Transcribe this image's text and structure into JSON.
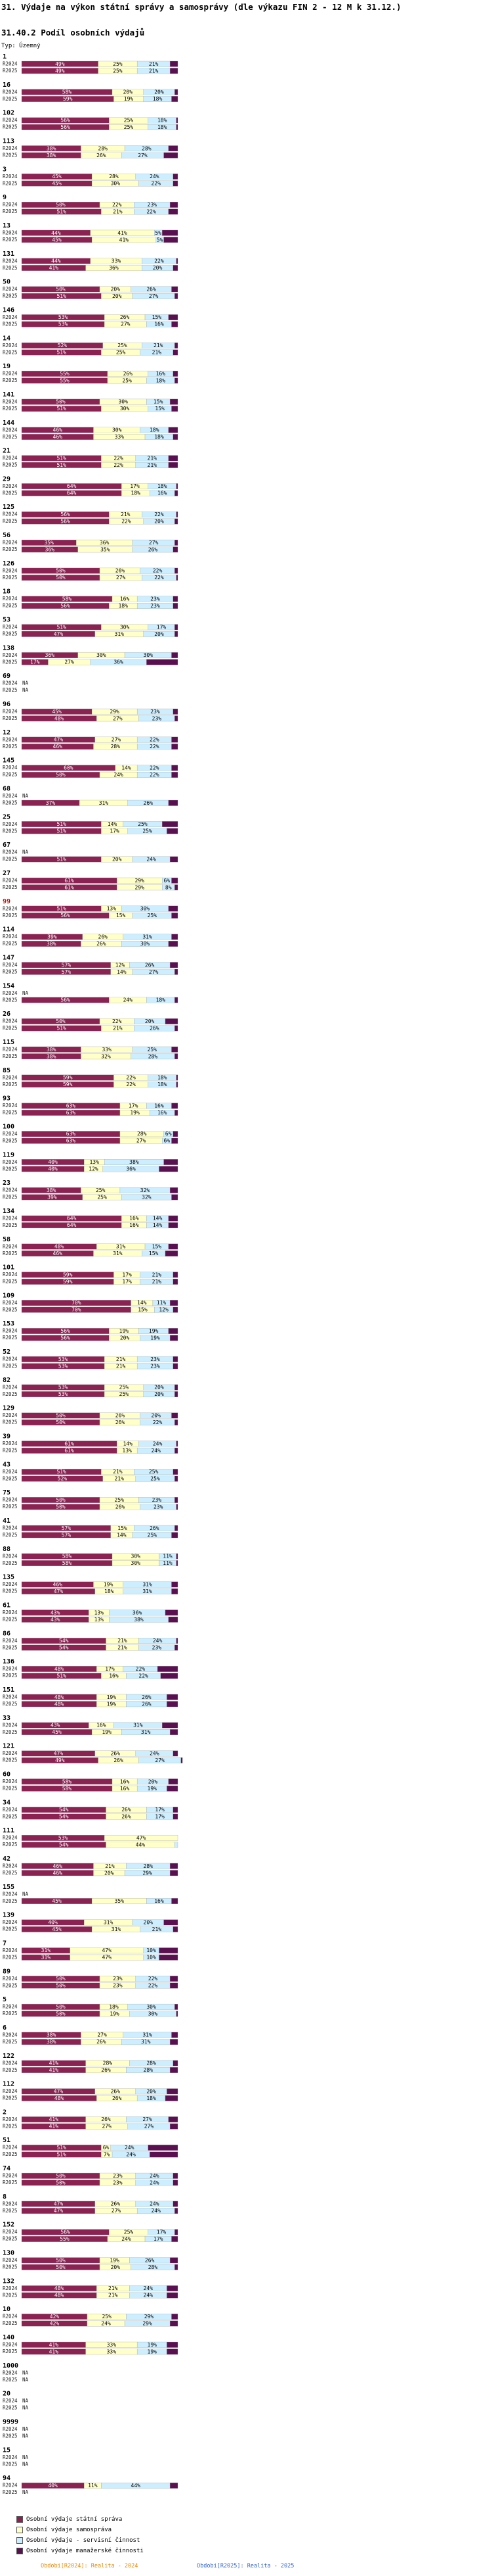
{
  "page": {
    "title": "31. Výdaje na výkon státní správy a samosprávy (dle výkazu FIN 2 - 12 M k 31.12.)",
    "subtitle": "31.40.2 Podíl osobních výdajů",
    "typ": "Typ: Územný",
    "row_labels": [
      "R2024",
      "R2025"
    ],
    "na_label": "NA",
    "highlight_group": "99"
  },
  "colors": {
    "statni_sprava": "#8b2252",
    "samosprava": "#ffffc8",
    "servisni": "#cceeff",
    "manazerske": "#5a1050"
  },
  "legend": [
    {
      "name": "Osobní výdaje státní správa",
      "color": "#8b2252"
    },
    {
      "name": "Osobní výdaje samospráva",
      "color": "#ffffc8"
    },
    {
      "name": "Osobní výdaje - servisní činnost",
      "color": "#cceeff"
    },
    {
      "name": "Osobní výdaje manažerské činnosti",
      "color": "#5a1050"
    }
  ],
  "footer": {
    "left": "Obdobi[R2024]: Realita - 2024",
    "right": "Obdobi[R2025]: Realita - 2025"
  },
  "chart_data": {
    "type": "bar",
    "orientation": "horizontal",
    "stacked": true,
    "unit": "%",
    "xlim": [
      0,
      100
    ],
    "series_names": [
      "Osobní výdaje státní správa",
      "Osobní výdaje samospráva",
      "Osobní výdaje - servisní činnost",
      "Osobní výdaje manažerské činnosti"
    ],
    "groups": [
      {
        "id": "1",
        "R2024": [
          49,
          25,
          21,
          5
        ],
        "R2025": [
          49,
          25,
          21,
          5
        ]
      },
      {
        "id": "16",
        "R2024": [
          58,
          20,
          20,
          2
        ],
        "R2025": [
          59,
          19,
          18,
          4
        ]
      },
      {
        "id": "102",
        "R2024": [
          56,
          25,
          18,
          1
        ],
        "R2025": [
          56,
          25,
          18,
          1
        ]
      },
      {
        "id": "113",
        "R2024": [
          38,
          28,
          28,
          6
        ],
        "R2025": [
          38,
          26,
          27,
          9
        ]
      },
      {
        "id": "3",
        "R2024": [
          45,
          28,
          24,
          3
        ],
        "R2025": [
          45,
          30,
          22,
          3
        ]
      },
      {
        "id": "9",
        "R2024": [
          50,
          22,
          23,
          5
        ],
        "R2025": [
          51,
          21,
          22,
          6
        ]
      },
      {
        "id": "13",
        "R2024": [
          44,
          41,
          5,
          10
        ],
        "R2025": [
          45,
          41,
          5,
          9
        ]
      },
      {
        "id": "131",
        "R2024": [
          44,
          33,
          22,
          1
        ],
        "R2025": [
          41,
          36,
          20,
          3
        ]
      },
      {
        "id": "50",
        "R2024": [
          50,
          20,
          26,
          4
        ],
        "R2025": [
          51,
          20,
          27,
          2
        ]
      },
      {
        "id": "146",
        "R2024": [
          53,
          26,
          15,
          6
        ],
        "R2025": [
          53,
          27,
          16,
          4
        ]
      },
      {
        "id": "14",
        "R2024": [
          52,
          25,
          21,
          2
        ],
        "R2025": [
          51,
          25,
          21,
          3
        ]
      },
      {
        "id": "19",
        "R2024": [
          55,
          26,
          16,
          3
        ],
        "R2025": [
          55,
          25,
          18,
          2
        ]
      },
      {
        "id": "141",
        "R2024": [
          50,
          30,
          15,
          5
        ],
        "R2025": [
          51,
          30,
          15,
          4
        ]
      },
      {
        "id": "144",
        "R2024": [
          46,
          30,
          18,
          6
        ],
        "R2025": [
          46,
          33,
          18,
          3
        ]
      },
      {
        "id": "21",
        "R2024": [
          51,
          22,
          21,
          6
        ],
        "R2025": [
          51,
          22,
          21,
          6
        ]
      },
      {
        "id": "29",
        "R2024": [
          64,
          17,
          18,
          1
        ],
        "R2025": [
          64,
          18,
          16,
          2
        ]
      },
      {
        "id": "125",
        "R2024": [
          56,
          21,
          22,
          1
        ],
        "R2025": [
          56,
          22,
          20,
          2
        ]
      },
      {
        "id": "56",
        "R2024": [
          35,
          36,
          27,
          2
        ],
        "R2025": [
          36,
          35,
          26,
          3
        ]
      },
      {
        "id": "126",
        "R2024": [
          50,
          26,
          22,
          2
        ],
        "R2025": [
          50,
          27,
          22,
          1
        ]
      },
      {
        "id": "18",
        "R2024": [
          58,
          16,
          23,
          3
        ],
        "R2025": [
          56,
          18,
          23,
          3
        ]
      },
      {
        "id": "53",
        "R2024": [
          51,
          30,
          17,
          2
        ],
        "R2025": [
          47,
          31,
          20,
          2
        ]
      },
      {
        "id": "138",
        "R2024": [
          36,
          30,
          30,
          4
        ],
        "R2025": [
          17,
          27,
          36,
          20
        ]
      },
      {
        "id": "69",
        "R2024": null,
        "R2025": null
      },
      {
        "id": "96",
        "R2024": [
          45,
          29,
          23,
          3
        ],
        "R2025": [
          48,
          27,
          23,
          2
        ]
      },
      {
        "id": "12",
        "R2024": [
          47,
          27,
          22,
          4
        ],
        "R2025": [
          46,
          28,
          22,
          4
        ]
      },
      {
        "id": "145",
        "R2024": [
          60,
          14,
          22,
          4
        ],
        "R2025": [
          50,
          24,
          22,
          4
        ]
      },
      {
        "id": "68",
        "R2024": null,
        "R2025": [
          37,
          31,
          26,
          6
        ]
      },
      {
        "id": "25",
        "R2024": [
          51,
          14,
          25,
          10
        ],
        "R2025": [
          51,
          17,
          25,
          7
        ]
      },
      {
        "id": "67",
        "R2024": null,
        "R2025": [
          51,
          20,
          24,
          5
        ]
      },
      {
        "id": "27",
        "R2024": [
          61,
          29,
          6,
          4
        ],
        "R2025": [
          61,
          29,
          8,
          2
        ]
      },
      {
        "id": "99",
        "R2024": [
          51,
          13,
          30,
          6
        ],
        "R2025": [
          56,
          15,
          25,
          4
        ]
      },
      {
        "id": "114",
        "R2024": [
          39,
          26,
          31,
          4
        ],
        "R2025": [
          38,
          26,
          30,
          6
        ]
      },
      {
        "id": "147",
        "R2024": [
          57,
          12,
          26,
          5
        ],
        "R2025": [
          57,
          14,
          27,
          2
        ]
      },
      {
        "id": "154",
        "R2024": null,
        "R2025": [
          56,
          24,
          18,
          2
        ]
      },
      {
        "id": "26",
        "R2024": [
          50,
          22,
          20,
          8
        ],
        "R2025": [
          51,
          21,
          26,
          2
        ]
      },
      {
        "id": "115",
        "R2024": [
          38,
          33,
          25,
          4
        ],
        "R2025": [
          38,
          32,
          28,
          2
        ]
      },
      {
        "id": "85",
        "R2024": [
          59,
          22,
          18,
          1
        ],
        "R2025": [
          59,
          22,
          18,
          1
        ]
      },
      {
        "id": "93",
        "R2024": [
          63,
          17,
          16,
          4
        ],
        "R2025": [
          63,
          19,
          16,
          2
        ]
      },
      {
        "id": "100",
        "R2024": [
          63,
          28,
          6,
          3
        ],
        "R2025": [
          63,
          27,
          6,
          4
        ]
      },
      {
        "id": "119",
        "R2024": [
          40,
          13,
          38,
          9
        ],
        "R2025": [
          40,
          12,
          36,
          12
        ]
      },
      {
        "id": "23",
        "R2024": [
          38,
          25,
          32,
          5
        ],
        "R2025": [
          39,
          25,
          32,
          4
        ]
      },
      {
        "id": "134",
        "R2024": [
          64,
          16,
          14,
          6
        ],
        "R2025": [
          64,
          16,
          14,
          6
        ]
      },
      {
        "id": "58",
        "R2024": [
          48,
          31,
          15,
          6
        ],
        "R2025": [
          46,
          31,
          15,
          8
        ]
      },
      {
        "id": "101",
        "R2024": [
          59,
          17,
          21,
          3
        ],
        "R2025": [
          59,
          17,
          21,
          3
        ]
      },
      {
        "id": "109",
        "R2024": [
          70,
          14,
          11,
          5
        ],
        "R2025": [
          70,
          15,
          12,
          3
        ]
      },
      {
        "id": "153",
        "R2024": [
          56,
          19,
          19,
          6
        ],
        "R2025": [
          56,
          20,
          19,
          5
        ]
      },
      {
        "id": "52",
        "R2024": [
          53,
          21,
          23,
          3
        ],
        "R2025": [
          53,
          21,
          23,
          3
        ]
      },
      {
        "id": "82",
        "R2024": [
          53,
          25,
          20,
          2
        ],
        "R2025": [
          53,
          25,
          20,
          2
        ]
      },
      {
        "id": "129",
        "R2024": [
          50,
          26,
          20,
          4
        ],
        "R2025": [
          50,
          26,
          22,
          2
        ]
      },
      {
        "id": "39",
        "R2024": [
          61,
          14,
          24,
          1
        ],
        "R2025": [
          61,
          13,
          24,
          2
        ]
      },
      {
        "id": "43",
        "R2024": [
          51,
          21,
          25,
          3
        ],
        "R2025": [
          52,
          21,
          25,
          2
        ]
      },
      {
        "id": "75",
        "R2024": [
          50,
          25,
          23,
          2
        ],
        "R2025": [
          50,
          26,
          23,
          1
        ]
      },
      {
        "id": "41",
        "R2024": [
          57,
          15,
          26,
          2
        ],
        "R2025": [
          57,
          14,
          25,
          4
        ]
      },
      {
        "id": "88",
        "R2024": [
          58,
          30,
          11,
          1
        ],
        "R2025": [
          58,
          30,
          11,
          1
        ]
      },
      {
        "id": "135",
        "R2024": [
          46,
          19,
          31,
          4
        ],
        "R2025": [
          47,
          18,
          31,
          4
        ]
      },
      {
        "id": "61",
        "R2024": [
          43,
          13,
          36,
          8
        ],
        "R2025": [
          43,
          13,
          38,
          6
        ]
      },
      {
        "id": "86",
        "R2024": [
          54,
          21,
          24,
          1
        ],
        "R2025": [
          54,
          21,
          23,
          2
        ]
      },
      {
        "id": "136",
        "R2024": [
          48,
          17,
          22,
          13
        ],
        "R2025": [
          51,
          16,
          22,
          11
        ]
      },
      {
        "id": "151",
        "R2024": [
          48,
          19,
          26,
          7
        ],
        "R2025": [
          48,
          19,
          26,
          7
        ]
      },
      {
        "id": "33",
        "R2024": [
          43,
          16,
          31,
          10
        ],
        "R2025": [
          45,
          19,
          31,
          5
        ]
      },
      {
        "id": "121",
        "R2024": [
          47,
          26,
          24,
          3
        ],
        "R2025": [
          49,
          26,
          27,
          1
        ]
      },
      {
        "id": "60",
        "R2024": [
          58,
          16,
          20,
          6
        ],
        "R2025": [
          58,
          16,
          19,
          7
        ]
      },
      {
        "id": "34",
        "R2024": [
          54,
          26,
          17,
          3
        ],
        "R2025": [
          54,
          26,
          17,
          3
        ]
      },
      {
        "id": "111",
        "R2024": [
          53,
          47,
          0,
          0
        ],
        "R2025": [
          54,
          44,
          2,
          0
        ]
      },
      {
        "id": "42",
        "R2024": [
          46,
          21,
          28,
          5
        ],
        "R2025": [
          46,
          20,
          29,
          5
        ]
      },
      {
        "id": "155",
        "R2024": null,
        "R2025": [
          45,
          35,
          16,
          4
        ]
      },
      {
        "id": "139",
        "R2024": [
          40,
          31,
          20,
          9
        ],
        "R2025": [
          45,
          31,
          21,
          3
        ]
      },
      {
        "id": "7",
        "R2024": [
          31,
          47,
          10,
          12
        ],
        "R2025": [
          31,
          47,
          10,
          12
        ]
      },
      {
        "id": "89",
        "R2024": [
          50,
          23,
          22,
          5
        ],
        "R2025": [
          50,
          23,
          22,
          5
        ]
      },
      {
        "id": "5",
        "R2024": [
          50,
          18,
          30,
          2
        ],
        "R2025": [
          50,
          19,
          30,
          1
        ]
      },
      {
        "id": "6",
        "R2024": [
          38,
          27,
          31,
          4
        ],
        "R2025": [
          38,
          26,
          31,
          5
        ]
      },
      {
        "id": "122",
        "R2024": [
          41,
          28,
          28,
          3
        ],
        "R2025": [
          41,
          26,
          28,
          5
        ]
      },
      {
        "id": "112",
        "R2024": [
          47,
          26,
          20,
          7
        ],
        "R2025": [
          48,
          26,
          18,
          8
        ]
      },
      {
        "id": "2",
        "R2024": [
          41,
          26,
          27,
          6
        ],
        "R2025": [
          41,
          27,
          27,
          5
        ]
      },
      {
        "id": "51",
        "R2024": [
          51,
          6,
          24,
          19
        ],
        "R2025": [
          51,
          7,
          24,
          18
        ]
      },
      {
        "id": "74",
        "R2024": [
          50,
          23,
          24,
          3
        ],
        "R2025": [
          50,
          23,
          24,
          3
        ]
      },
      {
        "id": "8",
        "R2024": [
          47,
          26,
          24,
          3
        ],
        "R2025": [
          47,
          27,
          24,
          2
        ]
      },
      {
        "id": "152",
        "R2024": [
          56,
          25,
          17,
          2
        ],
        "R2025": [
          55,
          24,
          17,
          4
        ]
      },
      {
        "id": "130",
        "R2024": [
          50,
          19,
          26,
          5
        ],
        "R2025": [
          50,
          20,
          28,
          2
        ]
      },
      {
        "id": "132",
        "R2024": [
          48,
          21,
          24,
          7
        ],
        "R2025": [
          48,
          21,
          24,
          7
        ]
      },
      {
        "id": "10",
        "R2024": [
          42,
          25,
          29,
          4
        ],
        "R2025": [
          42,
          24,
          29,
          5
        ]
      },
      {
        "id": "140",
        "R2024": [
          41,
          33,
          19,
          7
        ],
        "R2025": [
          41,
          33,
          19,
          7
        ]
      },
      {
        "id": "1000",
        "R2024": null,
        "R2025": null
      },
      {
        "id": "20",
        "R2024": null,
        "R2025": null
      },
      {
        "id": "9999",
        "R2024": null,
        "R2025": null
      },
      {
        "id": "15",
        "R2024": null,
        "R2025": null
      },
      {
        "id": "94",
        "R2024": [
          40,
          11,
          44,
          5
        ],
        "R2025": null
      }
    ]
  }
}
